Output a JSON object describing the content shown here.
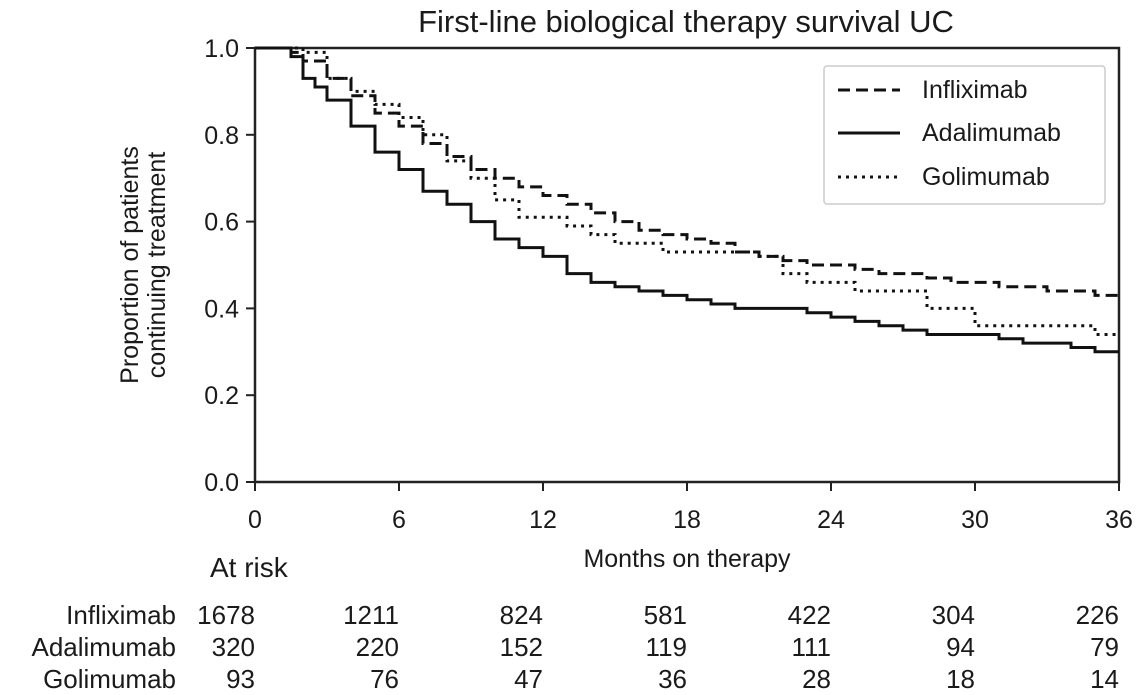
{
  "chart_data": {
    "type": "line",
    "title": "First-line biological therapy survival UC",
    "xlabel": "Months on therapy",
    "ylabel_lines": [
      "Proportion of patients",
      "continuing treatment"
    ],
    "xlim": [
      0,
      36
    ],
    "ylim": [
      0.0,
      1.0
    ],
    "xticks": [
      0,
      6,
      12,
      18,
      24,
      30,
      36
    ],
    "yticks": [
      0.0,
      0.2,
      0.4,
      0.6,
      0.8,
      1.0
    ],
    "legend_position": "top-right",
    "series": [
      {
        "name": "Infliximab",
        "style": "dashed",
        "x": [
          0,
          1.5,
          2,
          3,
          4,
          5,
          6,
          7,
          8,
          9,
          10,
          11,
          12,
          13,
          14,
          15,
          16,
          17,
          18,
          19,
          20,
          21,
          22,
          23,
          24,
          25,
          26,
          27,
          28,
          29,
          30,
          31,
          32,
          33,
          34,
          35,
          36
        ],
        "y": [
          1.0,
          0.99,
          0.97,
          0.93,
          0.89,
          0.85,
          0.82,
          0.78,
          0.75,
          0.72,
          0.7,
          0.68,
          0.66,
          0.64,
          0.62,
          0.6,
          0.58,
          0.57,
          0.56,
          0.55,
          0.53,
          0.52,
          0.51,
          0.5,
          0.5,
          0.49,
          0.48,
          0.48,
          0.47,
          0.46,
          0.46,
          0.45,
          0.45,
          0.44,
          0.44,
          0.43,
          0.43
        ]
      },
      {
        "name": "Adalimumab",
        "style": "solid",
        "x": [
          0,
          1.5,
          2,
          2.5,
          3,
          4,
          5,
          6,
          7,
          8,
          9,
          10,
          11,
          12,
          13,
          14,
          15,
          16,
          17,
          18,
          19,
          20,
          21,
          22,
          23,
          24,
          25,
          26,
          27,
          28,
          29,
          30,
          31,
          32,
          33,
          34,
          35,
          36
        ],
        "y": [
          1.0,
          0.98,
          0.93,
          0.91,
          0.88,
          0.82,
          0.76,
          0.72,
          0.67,
          0.64,
          0.6,
          0.56,
          0.54,
          0.52,
          0.48,
          0.46,
          0.45,
          0.44,
          0.43,
          0.42,
          0.41,
          0.4,
          0.4,
          0.4,
          0.39,
          0.38,
          0.37,
          0.36,
          0.35,
          0.34,
          0.34,
          0.34,
          0.33,
          0.32,
          0.32,
          0.31,
          0.3,
          0.3
        ]
      },
      {
        "name": "Golimumab",
        "style": "dotted",
        "x": [
          0,
          2,
          3,
          4,
          5,
          6,
          7,
          8,
          9,
          10,
          11,
          12,
          13,
          14,
          15,
          16,
          17,
          18,
          19,
          20,
          21,
          22,
          23,
          24,
          25,
          26,
          27,
          28,
          29,
          30,
          31,
          32,
          33,
          34,
          35,
          36
        ],
        "y": [
          1.0,
          0.99,
          0.93,
          0.9,
          0.87,
          0.84,
          0.8,
          0.74,
          0.7,
          0.65,
          0.61,
          0.61,
          0.59,
          0.57,
          0.55,
          0.55,
          0.53,
          0.53,
          0.53,
          0.53,
          0.52,
          0.48,
          0.46,
          0.46,
          0.44,
          0.44,
          0.44,
          0.4,
          0.4,
          0.36,
          0.36,
          0.36,
          0.36,
          0.36,
          0.34,
          0.34
        ]
      }
    ],
    "at_risk": {
      "label": "At risk",
      "times": [
        0,
        6,
        12,
        18,
        24,
        30,
        36
      ],
      "rows": [
        {
          "name": "Infliximab",
          "values": [
            1678,
            1211,
            824,
            581,
            422,
            304,
            226
          ]
        },
        {
          "name": "Adalimumab",
          "values": [
            320,
            220,
            152,
            119,
            111,
            94,
            79
          ]
        },
        {
          "name": "Golimumab",
          "values": [
            93,
            76,
            47,
            36,
            28,
            18,
            14
          ]
        }
      ]
    }
  }
}
